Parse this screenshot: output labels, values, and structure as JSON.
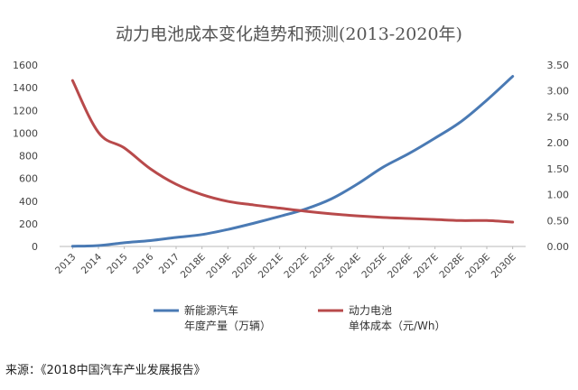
{
  "chart_data": {
    "type": "line",
    "title": "动力电池成本变化趋势和预测(2013-2020年)",
    "categories": [
      "2013",
      "2014",
      "2015",
      "2016",
      "2017",
      "2018E",
      "2019E",
      "2020E",
      "2021E",
      "2022E",
      "2023E",
      "2024E",
      "2025E",
      "2026E",
      "2027E",
      "2028E",
      "2029E",
      "2030E"
    ],
    "y_left": {
      "min": 0,
      "max": 1600,
      "ticks": [
        "0",
        "200",
        "400",
        "600",
        "800",
        "1000",
        "1200",
        "1400",
        "1600"
      ]
    },
    "y_right": {
      "min": 0,
      "max": 3.5,
      "ticks": [
        "0.00",
        "0.50",
        "1.00",
        "1.50",
        "2.00",
        "2.50",
        "3.00",
        "3.50"
      ]
    },
    "grid": false,
    "legend_position": "bottom",
    "series": [
      {
        "name": "新能源汽车年度产量（万辆）",
        "legend_lines": [
          "新能源汽车",
          "年度产量（万辆）"
        ],
        "axis": "left",
        "color": "#4a7ab4",
        "values": [
          2,
          8,
          33,
          52,
          80,
          105,
          150,
          205,
          265,
          330,
          420,
          550,
          700,
          820,
          955,
          1100,
          1290,
          1500
        ]
      },
      {
        "name": "动力电池单体成本（元/Wh）",
        "legend_lines": [
          "动力电池",
          "单体成本（元/Wh）"
        ],
        "axis": "right",
        "color": "#b84a4b",
        "values": [
          3.2,
          2.2,
          1.9,
          1.5,
          1.2,
          1.0,
          0.87,
          0.8,
          0.74,
          0.68,
          0.63,
          0.59,
          0.56,
          0.54,
          0.52,
          0.5,
          0.5,
          0.47
        ]
      }
    ]
  },
  "source_note": "来源：《2018中国汽车产业发展报告》"
}
